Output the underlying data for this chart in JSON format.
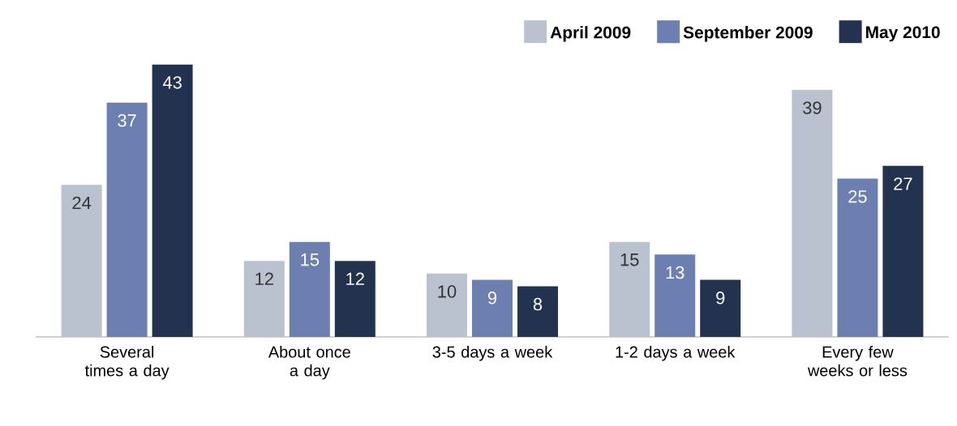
{
  "chart_data": {
    "type": "bar",
    "categories": [
      "Several times a day",
      "About once a day",
      "3-5 days a week",
      "1-2 days a week",
      "Every few weeks or less"
    ],
    "series": [
      {
        "name": "April 2009",
        "color": "#b9c2ce",
        "values": [
          24,
          12,
          10,
          15,
          39
        ]
      },
      {
        "name": "September 2009",
        "color": "#6c7fb0",
        "values": [
          37,
          15,
          9,
          13,
          25
        ]
      },
      {
        "name": "May 2010",
        "color": "#22324f",
        "values": [
          43,
          12,
          8,
          9,
          27
        ]
      }
    ],
    "data_labels": true,
    "legend": "top right"
  }
}
